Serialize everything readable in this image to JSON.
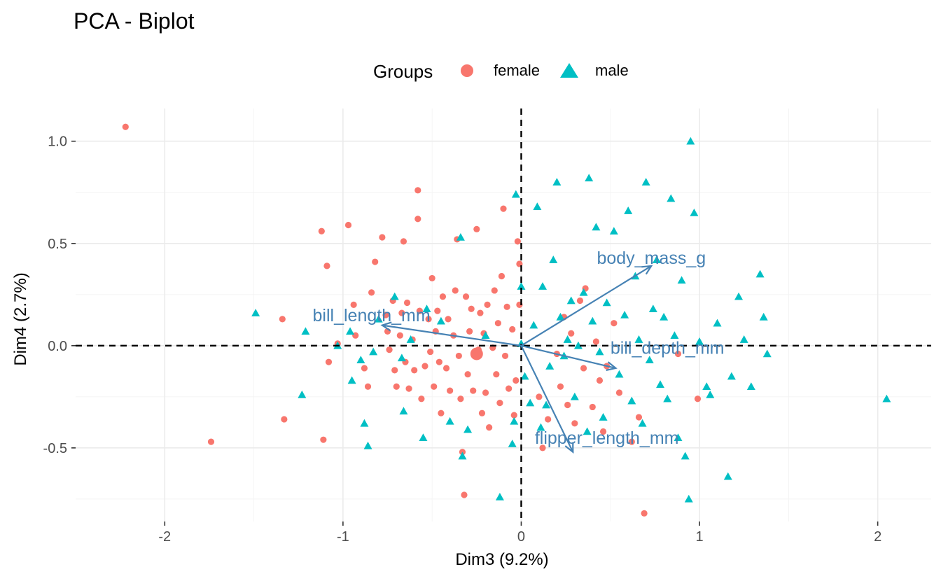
{
  "title": "PCA - Biplot",
  "legend": {
    "title": "Groups",
    "items": [
      {
        "label": "female",
        "color": "#F8766D",
        "shape": "circle"
      },
      {
        "label": "male",
        "color": "#00BFC4",
        "shape": "triangle"
      }
    ]
  },
  "chart_data": {
    "type": "scatter",
    "title": "PCA - Biplot",
    "xlabel": "Dim3 (9.2%)",
    "ylabel": "Dim4 (2.7%)",
    "xlim": [
      -2.5,
      2.3
    ],
    "ylim": [
      -0.86,
      1.16
    ],
    "xticks": [
      -2,
      -1,
      0,
      1,
      2
    ],
    "xtick_labels": [
      "-2",
      "-1",
      "0",
      "1",
      "2"
    ],
    "yticks": [
      -0.5,
      0.0,
      0.5,
      1.0
    ],
    "ytick_labels": [
      "-0.5",
      "0.0",
      "0.5",
      "1.0"
    ],
    "grid": true,
    "legend_position": "top",
    "reference_lines": {
      "x": 0,
      "y": 0,
      "style": "dashed"
    },
    "series": [
      {
        "name": "female",
        "color": "#F8766D",
        "marker": "circle",
        "points": [
          [
            -2.22,
            1.07
          ],
          [
            -1.74,
            -0.47
          ],
          [
            -1.34,
            0.13
          ],
          [
            -1.33,
            -0.36
          ],
          [
            -1.12,
            0.56
          ],
          [
            -1.11,
            -0.46
          ],
          [
            -1.09,
            0.39
          ],
          [
            -1.08,
            -0.08
          ],
          [
            -1.03,
            0.01
          ],
          [
            -0.97,
            0.59
          ],
          [
            -0.94,
            0.2
          ],
          [
            -0.93,
            0.05
          ],
          [
            -0.88,
            -0.11
          ],
          [
            -0.86,
            -0.2
          ],
          [
            -0.84,
            0.26
          ],
          [
            -0.82,
            0.41
          ],
          [
            -0.78,
            0.53
          ],
          [
            -0.76,
            0.15
          ],
          [
            -0.75,
            0.07
          ],
          [
            -0.74,
            -0.02
          ],
          [
            -0.72,
            0.22
          ],
          [
            -0.71,
            -0.12
          ],
          [
            -0.7,
            -0.2
          ],
          [
            -0.68,
            0.05
          ],
          [
            -0.67,
            0.16
          ],
          [
            -0.66,
            0.51
          ],
          [
            -0.65,
            -0.08
          ],
          [
            -0.64,
            0.21
          ],
          [
            -0.63,
            -0.21
          ],
          [
            -0.61,
            0.03
          ],
          [
            -0.6,
            -0.12
          ],
          [
            -0.58,
            0.76
          ],
          [
            -0.58,
            0.62
          ],
          [
            -0.57,
            0.17
          ],
          [
            -0.56,
            -0.26
          ],
          [
            -0.54,
            -0.1
          ],
          [
            -0.52,
            0.13
          ],
          [
            -0.51,
            -0.03
          ],
          [
            -0.5,
            0.33
          ],
          [
            -0.49,
            -0.2
          ],
          [
            -0.48,
            0.07
          ],
          [
            -0.47,
            0.17
          ],
          [
            -0.46,
            -0.08
          ],
          [
            -0.45,
            -0.33
          ],
          [
            -0.44,
            0.24
          ],
          [
            -0.42,
            -0.11
          ],
          [
            -0.41,
            0.13
          ],
          [
            -0.4,
            -0.22
          ],
          [
            -0.38,
            0.05
          ],
          [
            -0.37,
            0.27
          ],
          [
            -0.36,
            0.52
          ],
          [
            -0.35,
            -0.05
          ],
          [
            -0.34,
            -0.26
          ],
          [
            -0.33,
            -0.52
          ],
          [
            -0.32,
            -0.73
          ],
          [
            -0.31,
            0.24
          ],
          [
            -0.3,
            -0.14
          ],
          [
            -0.29,
            0.07
          ],
          [
            -0.28,
            0.18
          ],
          [
            -0.27,
            -0.22
          ],
          [
            -0.25,
            0.57
          ],
          [
            -0.24,
            -0.02
          ],
          [
            -0.23,
            0.16
          ],
          [
            -0.22,
            -0.33
          ],
          [
            -0.21,
            0.06
          ],
          [
            -0.2,
            -0.23
          ],
          [
            -0.19,
            0.2
          ],
          [
            -0.18,
            -0.4
          ],
          [
            -0.16,
            -0.01
          ],
          [
            -0.15,
            0.27
          ],
          [
            -0.14,
            -0.14
          ],
          [
            -0.13,
            0.11
          ],
          [
            -0.12,
            -0.28
          ],
          [
            -0.11,
            0.34
          ],
          [
            -0.1,
            0.67
          ],
          [
            -0.09,
            -0.05
          ],
          [
            -0.08,
            0.19
          ],
          [
            -0.07,
            -0.21
          ],
          [
            -0.05,
            0.08
          ],
          [
            -0.04,
            -0.34
          ],
          [
            -0.03,
            -0.17
          ],
          [
            -0.02,
            0.51
          ],
          [
            -0.01,
            0.4
          ],
          [
            -0.01,
            0.2
          ],
          [
            0.1,
            -0.25
          ],
          [
            0.12,
            -0.5
          ],
          [
            0.15,
            -0.36
          ],
          [
            0.2,
            -0.04
          ],
          [
            0.22,
            -0.2
          ],
          [
            0.24,
            0.14
          ],
          [
            0.26,
            -0.29
          ],
          [
            0.28,
            0.06
          ],
          [
            0.3,
            -0.38
          ],
          [
            0.33,
            0.22
          ],
          [
            0.35,
            -0.11
          ],
          [
            0.36,
            0.28
          ],
          [
            0.4,
            -0.3
          ],
          [
            0.42,
            0.02
          ],
          [
            0.44,
            -0.17
          ],
          [
            0.46,
            -0.42
          ],
          [
            0.48,
            -0.1
          ],
          [
            0.52,
            0.11
          ],
          [
            0.55,
            -0.23
          ],
          [
            0.62,
            -0.47
          ],
          [
            0.66,
            -0.35
          ],
          [
            0.69,
            -0.82
          ],
          [
            0.88,
            -0.04
          ],
          [
            0.99,
            -0.26
          ]
        ]
      },
      {
        "name": "male",
        "color": "#00BFC4",
        "marker": "triangle",
        "points": [
          [
            -1.49,
            0.16
          ],
          [
            -1.21,
            0.07
          ],
          [
            -1.23,
            -0.24
          ],
          [
            -1.03,
            0.0
          ],
          [
            -0.96,
            0.07
          ],
          [
            -0.95,
            -0.17
          ],
          [
            -0.9,
            -0.07
          ],
          [
            -0.88,
            -0.38
          ],
          [
            -0.86,
            -0.49
          ],
          [
            -0.83,
            -0.03
          ],
          [
            -0.8,
            0.13
          ],
          [
            -0.71,
            0.24
          ],
          [
            -0.67,
            -0.06
          ],
          [
            -0.66,
            -0.32
          ],
          [
            -0.62,
            0.03
          ],
          [
            -0.55,
            -0.45
          ],
          [
            -0.53,
            0.18
          ],
          [
            -0.45,
            0.12
          ],
          [
            -0.4,
            -0.37
          ],
          [
            -0.34,
            0.53
          ],
          [
            -0.33,
            -0.54
          ],
          [
            -0.3,
            -0.41
          ],
          [
            -0.2,
            0.05
          ],
          [
            -0.12,
            -0.74
          ],
          [
            -0.05,
            -0.48
          ],
          [
            -0.04,
            -0.37
          ],
          [
            -0.03,
            0.74
          ],
          [
            0.0,
            0.29
          ],
          [
            0.0,
            0.01
          ],
          [
            0.02,
            -0.15
          ],
          [
            0.05,
            -0.28
          ],
          [
            0.07,
            0.1
          ],
          [
            0.09,
            0.68
          ],
          [
            0.11,
            -0.4
          ],
          [
            0.12,
            0.29
          ],
          [
            0.14,
            -0.29
          ],
          [
            0.16,
            -0.1
          ],
          [
            0.18,
            0.42
          ],
          [
            0.2,
            0.8
          ],
          [
            0.22,
            0.14
          ],
          [
            0.24,
            -0.05
          ],
          [
            0.26,
            0.03
          ],
          [
            0.28,
            0.22
          ],
          [
            0.3,
            -0.25
          ],
          [
            0.32,
            0.0
          ],
          [
            0.35,
            0.26
          ],
          [
            0.37,
            -0.42
          ],
          [
            0.38,
            0.82
          ],
          [
            0.4,
            0.12
          ],
          [
            0.42,
            0.58
          ],
          [
            0.44,
            -0.03
          ],
          [
            0.46,
            -0.35
          ],
          [
            0.48,
            0.21
          ],
          [
            0.52,
            0.56
          ],
          [
            0.55,
            -0.14
          ],
          [
            0.58,
            0.15
          ],
          [
            0.6,
            0.66
          ],
          [
            0.62,
            -0.27
          ],
          [
            0.64,
            0.34
          ],
          [
            0.66,
            0.03
          ],
          [
            0.68,
            -0.38
          ],
          [
            0.7,
            0.8
          ],
          [
            0.72,
            -0.07
          ],
          [
            0.74,
            0.18
          ],
          [
            0.76,
            0.42
          ],
          [
            0.78,
            -0.19
          ],
          [
            0.8,
            0.14
          ],
          [
            0.82,
            -0.26
          ],
          [
            0.84,
            0.72
          ],
          [
            0.86,
            0.05
          ],
          [
            0.88,
            -0.45
          ],
          [
            0.9,
            0.32
          ],
          [
            0.92,
            -0.54
          ],
          [
            0.94,
            -0.75
          ],
          [
            0.95,
            1.0
          ],
          [
            0.97,
            0.65
          ],
          [
            1.0,
            0.02
          ],
          [
            1.04,
            -0.2
          ],
          [
            1.06,
            -0.24
          ],
          [
            1.1,
            0.11
          ],
          [
            1.18,
            -0.15
          ],
          [
            1.22,
            0.24
          ],
          [
            1.25,
            0.03
          ],
          [
            1.29,
            -0.2
          ],
          [
            1.34,
            0.35
          ],
          [
            1.36,
            0.14
          ],
          [
            1.38,
            -0.04
          ],
          [
            1.16,
            -0.64
          ],
          [
            2.05,
            -0.26
          ]
        ]
      }
    ],
    "variables": [
      {
        "name": "bill_length_mm",
        "x": -0.78,
        "y": 0.1
      },
      {
        "name": "body_mass_g",
        "x": 0.73,
        "y": 0.39
      },
      {
        "name": "bill_depth_mm",
        "x": 0.53,
        "y": -0.11
      },
      {
        "name": "flipper_length_mm",
        "x": 0.29,
        "y": -0.52
      }
    ]
  }
}
